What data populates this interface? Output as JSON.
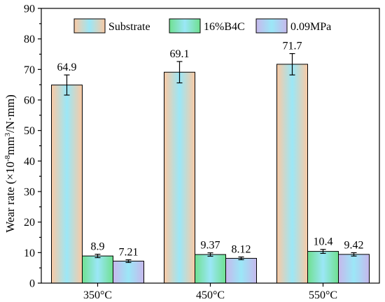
{
  "chart_data": {
    "type": "bar",
    "categories": [
      "350°C",
      "450°C",
      "550°C"
    ],
    "series": [
      {
        "name": "Substrate",
        "values": [
          64.9,
          69.1,
          71.7
        ],
        "errors": [
          3.3,
          3.5,
          3.5
        ],
        "labels": [
          "64.9",
          "69.1",
          "71.7"
        ],
        "fill_colors": [
          "#9be7f7",
          "#fbc9a3"
        ]
      },
      {
        "name": "16%B4C",
        "values": [
          8.9,
          9.37,
          10.4
        ],
        "errors": [
          0.55,
          0.55,
          0.65
        ],
        "labels": [
          "8.9",
          "9.37",
          "10.4"
        ],
        "fill_colors": [
          "#9be7f7",
          "#6fe090"
        ]
      },
      {
        "name": "0.09MPa",
        "values": [
          7.21,
          8.12,
          9.42
        ],
        "errors": [
          0.45,
          0.45,
          0.55
        ],
        "labels": [
          "7.21",
          "8.12",
          "9.42"
        ],
        "fill_colors": [
          "#9be7f7",
          "#c7b8ec"
        ]
      }
    ],
    "ylabel_main": "Wear rate (×10",
    "ylabel_exp1": "-8",
    "ylabel_mid": "mm",
    "ylabel_exp2": "3",
    "ylabel_tail": "/N·mm)",
    "ylim": [
      0,
      90
    ],
    "yticks": [
      "0",
      "10",
      "20",
      "30",
      "40",
      "50",
      "60",
      "70",
      "80",
      "90"
    ],
    "grid": false,
    "legend_position": "top"
  }
}
